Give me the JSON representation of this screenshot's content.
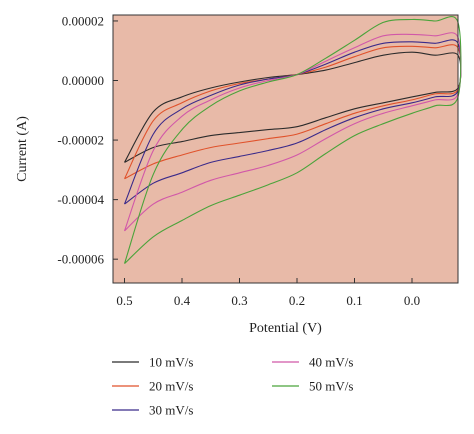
{
  "chart_data": {
    "type": "line",
    "title": "",
    "xlabel": "Potential (V)",
    "ylabel": "Current (A)",
    "x_reversed": true,
    "xlim": [
      0.52,
      -0.08
    ],
    "ylim": [
      -6.8e-05,
      2.2e-05
    ],
    "x_ticks": [
      0.5,
      0.4,
      0.3,
      0.2,
      0.1,
      0.0
    ],
    "x_tick_labels": [
      "0.5",
      "0.4",
      "0.3",
      "0.2",
      "0.1",
      "0.0"
    ],
    "y_ticks": [
      2e-05,
      0.0,
      -2e-05,
      -4e-05,
      -6e-05
    ],
    "y_tick_labels": [
      "0.00002",
      "0.00000",
      "-0.00002",
      "-0.00004",
      "-0.00006"
    ],
    "plot_background": "#e8baa8",
    "grid": false,
    "legend_position": "bottom",
    "series": [
      {
        "name": "10 mV/s",
        "color": "#2b2b2b",
        "x": [
          0.5,
          0.45,
          0.4,
          0.35,
          0.3,
          0.25,
          0.2,
          0.15,
          0.1,
          0.05,
          0.0,
          -0.04,
          -0.08,
          -0.08,
          -0.04,
          0.0,
          0.05,
          0.1,
          0.15,
          0.2,
          0.25,
          0.3,
          0.35,
          0.4,
          0.45,
          0.5
        ],
        "y": [
          -2.75e-05,
          -1.05e-05,
          -5.5e-06,
          -2.5e-06,
          -5e-07,
          1e-06,
          2e-06,
          3.5e-06,
          6e-06,
          8.5e-06,
          9.5e-06,
          8.5e-06,
          8.5e-06,
          -2.5e-06,
          -4e-06,
          -5.5e-06,
          -7.5e-06,
          -9.5e-06,
          -1.25e-05,
          -1.55e-05,
          -1.65e-05,
          -1.75e-05,
          -1.85e-05,
          -2.05e-05,
          -2.25e-05,
          -2.75e-05
        ]
      },
      {
        "name": "20 mV/s",
        "color": "#e0522b",
        "x": [
          0.5,
          0.45,
          0.4,
          0.35,
          0.3,
          0.25,
          0.2,
          0.15,
          0.1,
          0.05,
          0.0,
          -0.04,
          -0.08,
          -0.08,
          -0.04,
          0.0,
          0.05,
          0.1,
          0.15,
          0.2,
          0.25,
          0.3,
          0.35,
          0.4,
          0.45,
          0.5
        ],
        "y": [
          -3.3e-05,
          -1.35e-05,
          -7.5e-06,
          -3.5e-06,
          -1e-06,
          5e-07,
          2e-06,
          4.5e-06,
          8e-06,
          1.1e-05,
          1.15e-05,
          1.1e-05,
          1.1e-05,
          -3e-06,
          -4.5e-06,
          -6.5e-06,
          -8.5e-06,
          -1.1e-05,
          -1.45e-05,
          -1.8e-05,
          -1.95e-05,
          -2.1e-05,
          -2.25e-05,
          -2.5e-05,
          -2.8e-05,
          -3.3e-05
        ]
      },
      {
        "name": "30 mV/s",
        "color": "#3a2a8a",
        "x": [
          0.5,
          0.45,
          0.4,
          0.35,
          0.3,
          0.25,
          0.2,
          0.15,
          0.1,
          0.05,
          0.0,
          -0.04,
          -0.08,
          -0.08,
          -0.04,
          0.0,
          0.05,
          0.1,
          0.15,
          0.2,
          0.25,
          0.3,
          0.35,
          0.4,
          0.45,
          0.5
        ],
        "y": [
          -4.15e-05,
          -1.8e-05,
          -9.5e-06,
          -5e-06,
          -1.5e-06,
          5e-07,
          2e-06,
          5.5e-06,
          9.5e-06,
          1.25e-05,
          1.3e-05,
          1.25e-05,
          1.25e-05,
          -3.5e-06,
          -5.5e-06,
          -7.5e-06,
          -9.5e-06,
          -1.25e-05,
          -1.65e-05,
          -2.1e-05,
          -2.35e-05,
          -2.55e-05,
          -2.75e-05,
          -3.1e-05,
          -3.45e-05,
          -4.15e-05
        ]
      },
      {
        "name": "40 mV/s",
        "color": "#d158a8",
        "x": [
          0.5,
          0.45,
          0.4,
          0.35,
          0.3,
          0.25,
          0.2,
          0.15,
          0.1,
          0.05,
          0.0,
          -0.04,
          -0.08,
          -0.08,
          -0.04,
          0.0,
          0.05,
          0.1,
          0.15,
          0.2,
          0.25,
          0.3,
          0.35,
          0.4,
          0.45,
          0.5
        ],
        "y": [
          -5.05e-05,
          -2.35e-05,
          -1.2e-05,
          -6.5e-06,
          -2.5e-06,
          0.0,
          2e-06,
          6.5e-06,
          1.1e-05,
          1.5e-05,
          1.55e-05,
          1.5e-05,
          1.45e-05,
          -4.5e-06,
          -6.5e-06,
          -8.5e-06,
          -1.1e-05,
          -1.45e-05,
          -1.95e-05,
          -2.5e-05,
          -2.85e-05,
          -3.1e-05,
          -3.35e-05,
          -3.75e-05,
          -4.15e-05,
          -5.05e-05
        ]
      },
      {
        "name": "50 mV/s",
        "color": "#4aa33a",
        "x": [
          0.5,
          0.45,
          0.4,
          0.35,
          0.3,
          0.25,
          0.2,
          0.15,
          0.1,
          0.05,
          0.0,
          -0.04,
          -0.08,
          -0.08,
          -0.04,
          0.0,
          0.05,
          0.1,
          0.15,
          0.2,
          0.25,
          0.3,
          0.35,
          0.4,
          0.45,
          0.5
        ],
        "y": [
          -6.15e-05,
          -3.15e-05,
          -1.65e-05,
          -8.5e-06,
          -3.5e-06,
          -5e-07,
          2e-06,
          7.5e-06,
          1.35e-05,
          1.95e-05,
          2.05e-05,
          2e-05,
          1.95e-05,
          -5.5e-06,
          -8.5e-06,
          -1.1e-05,
          -1.45e-05,
          -1.85e-05,
          -2.45e-05,
          -3.1e-05,
          -3.5e-05,
          -3.85e-05,
          -4.2e-05,
          -4.7e-05,
          -5.25e-05,
          -6.15e-05
        ]
      }
    ]
  }
}
